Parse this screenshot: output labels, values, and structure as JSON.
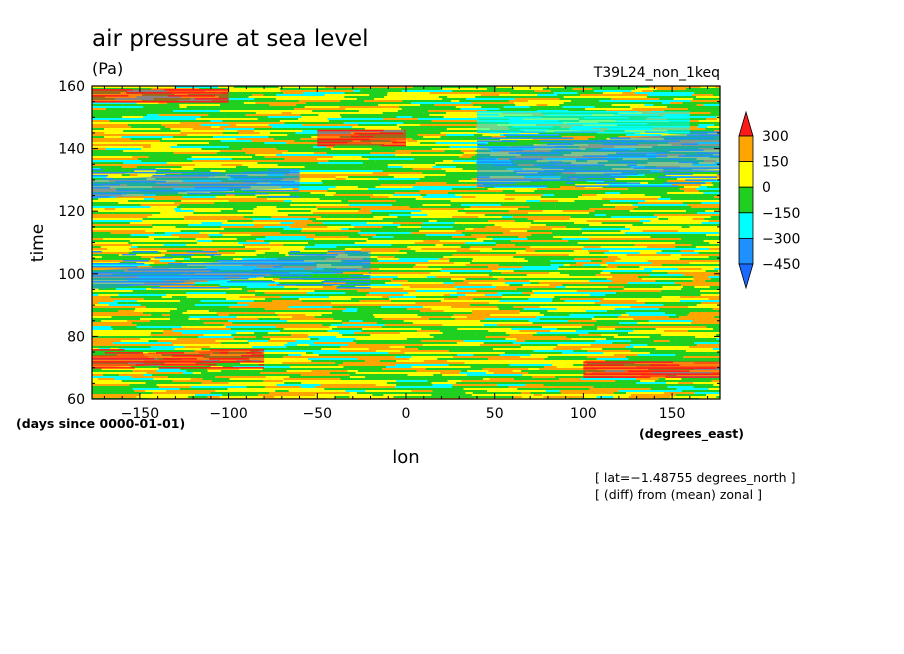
{
  "chart_data": {
    "type": "heatmap",
    "title": "air pressure at sea level",
    "units": "(Pa)",
    "run_label": "T39L24_non_1keq",
    "xlabel": "lon",
    "ylabel": "time",
    "x_units": "(degrees_east)",
    "y_units": "(days since 0000-01-01)",
    "xlim": [
      -177,
      177
    ],
    "ylim": [
      60,
      160
    ],
    "x_ticks": [
      -150,
      -100,
      -50,
      0,
      50,
      100,
      150
    ],
    "x_tick_labels": [
      "−150",
      "−100",
      "−50",
      "0",
      "50",
      "100",
      "150"
    ],
    "y_ticks": [
      60,
      80,
      100,
      120,
      140,
      160
    ],
    "y_tick_labels": [
      "60",
      "80",
      "100",
      "120",
      "140",
      "160"
    ],
    "annotations": [
      "[ lat=−1.48755 degrees_north ]",
      "[ (diff) from (mean) zonal ]"
    ],
    "colorbar": {
      "boundaries": [
        300,
        150,
        0,
        -150,
        -300,
        -450
      ],
      "labels": [
        "300",
        "150",
        "0",
        "−150",
        "−300",
        "−450"
      ],
      "colors_high_to_low": [
        "#ff1a1a",
        "#ffa500",
        "#ffff00",
        "#20d020",
        "#00ffff",
        "#1e90ff",
        "#1a6aff"
      ]
    },
    "bands": [
      {
        "name": "positive",
        "t0": 70,
        "t1": 74,
        "lon": [
          -177,
          -80
        ],
        "drift_per_deg": 0.02,
        "color": "#ff1a1a"
      },
      {
        "name": "positive",
        "t0": 67,
        "t1": 72,
        "lon": [
          100,
          177
        ],
        "drift_per_deg": 0.0,
        "color": "#ff1a1a"
      },
      {
        "name": "negative",
        "t0": 95,
        "t1": 101,
        "lon": [
          -177,
          -20
        ],
        "drift_per_deg": 0.04,
        "color": "#1e90ff"
      },
      {
        "name": "negative",
        "t0": 124,
        "t1": 130,
        "lon": [
          -177,
          -60
        ],
        "drift_per_deg": 0.03,
        "color": "#1e90ff"
      },
      {
        "name": "negative",
        "t0": 128,
        "t1": 140,
        "lon": [
          40,
          177
        ],
        "drift_per_deg": 0.04,
        "color": "#1e90ff"
      },
      {
        "name": "negative",
        "t0": 145,
        "t1": 152,
        "lon": [
          40,
          160
        ],
        "drift_per_deg": 0.0,
        "color": "#00ffff"
      },
      {
        "name": "positive",
        "t0": 141,
        "t1": 146,
        "lon": [
          -50,
          0
        ],
        "drift_per_deg": 0.0,
        "color": "#ff1a1a"
      },
      {
        "name": "positive",
        "t0": 155,
        "t1": 159,
        "lon": [
          -177,
          -100
        ],
        "drift_per_deg": 0.0,
        "color": "#ff1a1a"
      }
    ]
  }
}
